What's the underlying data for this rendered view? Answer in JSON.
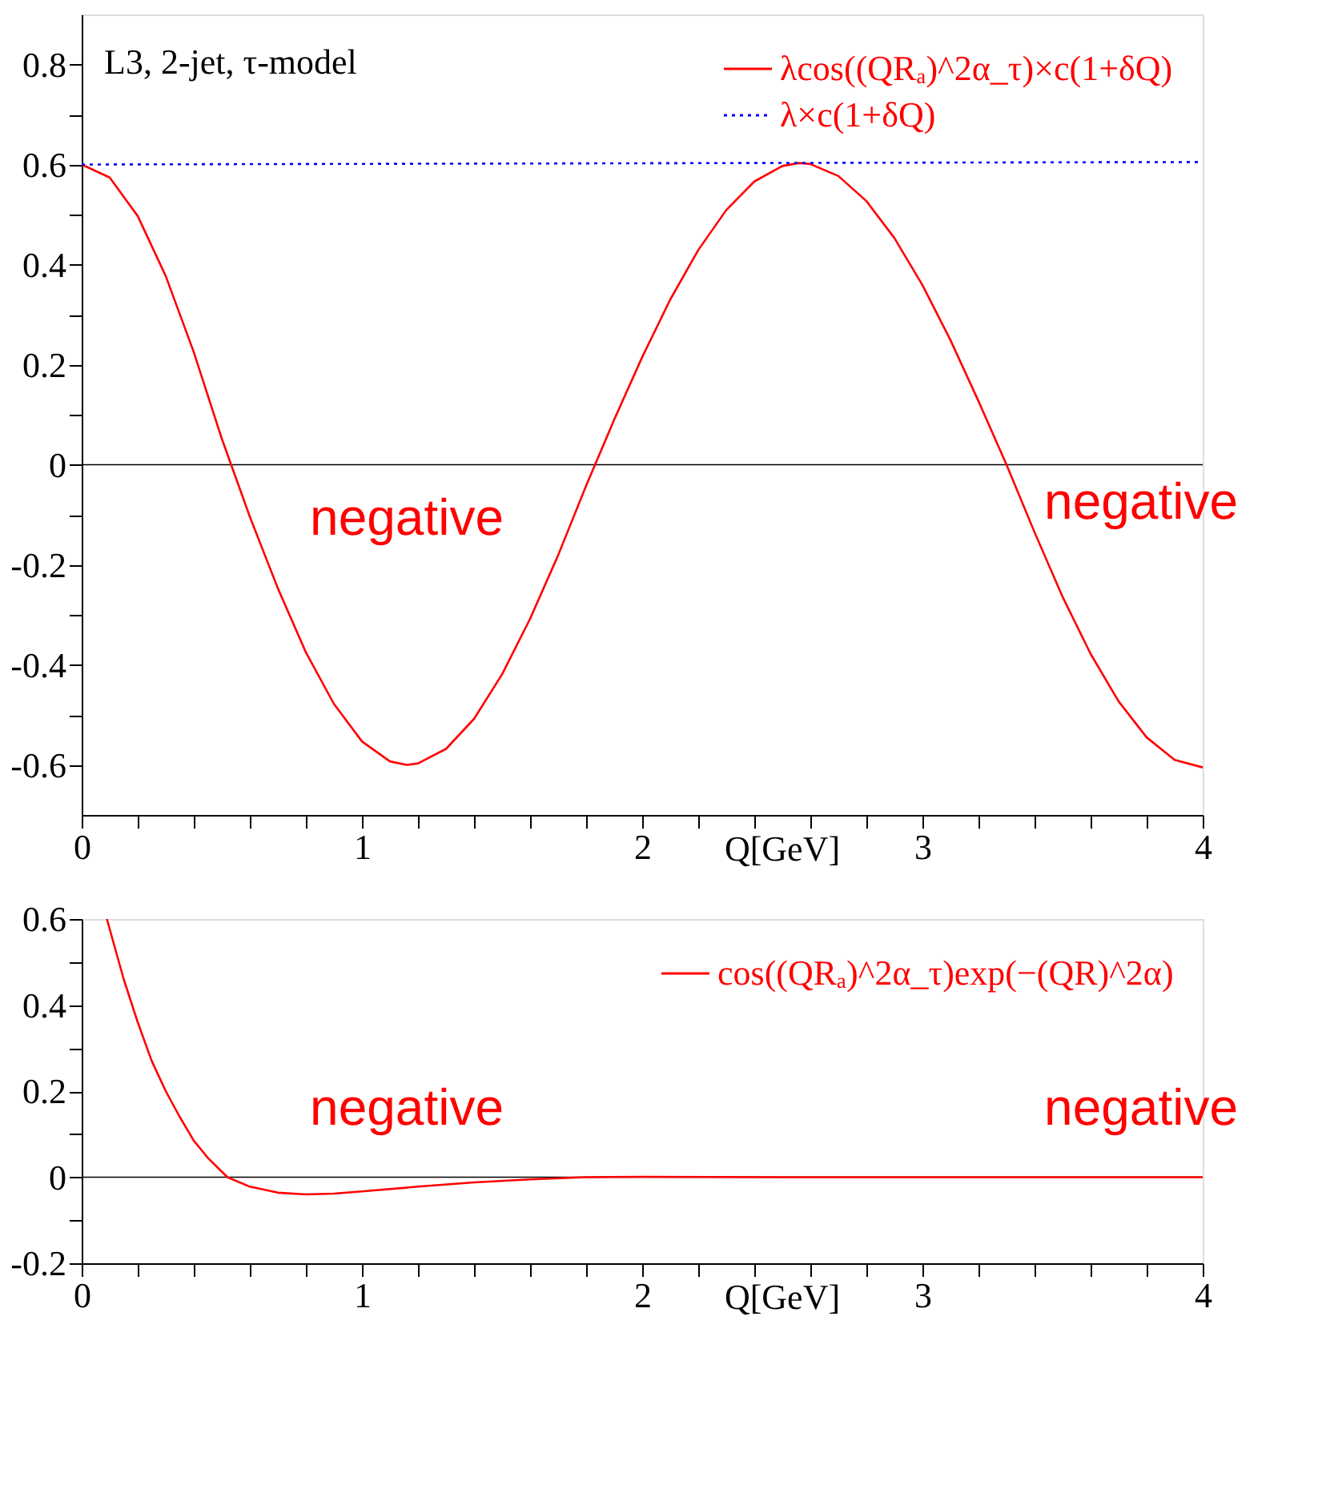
{
  "chart_data": [
    {
      "type": "line",
      "xlabel": "Q[GeV]",
      "xlim": [
        0,
        4
      ],
      "ylim": [
        -0.7,
        0.9
      ],
      "xticks": [
        0,
        {
          "value": 0.2,
          "label": null
        },
        {
          "value": 0.4,
          "label": null
        },
        {
          "value": 0.6,
          "label": null
        },
        {
          "value": 0.8,
          "label": null
        },
        1,
        {
          "value": 1.2,
          "label": null
        },
        {
          "value": 1.4,
          "label": null
        },
        {
          "value": 1.6,
          "label": null
        },
        {
          "value": 1.8,
          "label": null
        },
        2,
        {
          "value": 2.2,
          "label": null
        },
        {
          "value": 2.4,
          "label": null
        },
        {
          "value": 2.6,
          "label": null
        },
        {
          "value": 2.8,
          "label": null
        },
        3,
        {
          "value": 3.2,
          "label": null
        },
        {
          "value": 3.4,
          "label": null
        },
        {
          "value": 3.6,
          "label": null
        },
        {
          "value": 3.8,
          "label": null
        },
        4
      ],
      "yticks": [
        -0.6,
        {
          "value": -0.5,
          "label": null
        },
        -0.4,
        {
          "value": -0.3,
          "label": null
        },
        -0.2,
        {
          "value": -0.1,
          "label": null
        },
        0,
        {
          "value": 0.1,
          "label": null
        },
        0.2,
        {
          "value": 0.3,
          "label": null
        },
        0.4,
        {
          "value": 0.5,
          "label": null
        },
        0.6,
        {
          "value": 0.7,
          "label": null
        },
        0.8
      ],
      "grid": false,
      "legend": "top right",
      "marker": "none",
      "series": [
        {
          "name": "λcos((QRₐ)^2α_τ)×c(1+δQ)",
          "color": "#ff0000",
          "line_style": "solid",
          "x": [
            0,
            0.1,
            0.2,
            0.3,
            0.4,
            0.5,
            0.6,
            0.7,
            0.8,
            0.9,
            1.0,
            1.1,
            1.16,
            1.2,
            1.3,
            1.4,
            1.5,
            1.6,
            1.7,
            1.8,
            1.9,
            2.0,
            2.1,
            2.2,
            2.3,
            2.4,
            2.5,
            2.56,
            2.6,
            2.7,
            2.8,
            2.9,
            3.0,
            3.1,
            3.2,
            3.3,
            3.4,
            3.5,
            3.6,
            3.7,
            3.8,
            3.9,
            4.0
          ],
          "values": [
            0.6,
            0.574,
            0.497,
            0.377,
            0.225,
            0.052,
            -0.104,
            -0.247,
            -0.375,
            -0.478,
            -0.553,
            -0.593,
            -0.6,
            -0.597,
            -0.568,
            -0.508,
            -0.419,
            -0.308,
            -0.181,
            -0.042,
            0.09,
            0.215,
            0.33,
            0.429,
            0.509,
            0.566,
            0.597,
            0.603,
            0.601,
            0.577,
            0.527,
            0.453,
            0.359,
            0.249,
            0.127,
            0.0,
            -0.135,
            -0.264,
            -0.378,
            -0.473,
            -0.545,
            -0.59,
            -0.605
          ]
        },
        {
          "name": "λ×c(1+δQ)",
          "color": "#0000ff",
          "line_style": "dotted",
          "x": [
            0,
            4
          ],
          "values": [
            0.6,
            0.605
          ]
        }
      ],
      "ref_lines": [
        {
          "axis": "y",
          "value": 0,
          "color": "#000000"
        }
      ],
      "annotations": [
        "L3, 2-jet, τ-model",
        "negative",
        "negative"
      ]
    },
    {
      "type": "line",
      "xlabel": "Q[GeV]",
      "xlim": [
        0,
        4
      ],
      "ylim": [
        -0.2,
        0.6
      ],
      "xticks": [
        0,
        {
          "value": 0.2,
          "label": null
        },
        {
          "value": 0.4,
          "label": null
        },
        {
          "value": 0.6,
          "label": null
        },
        {
          "value": 0.8,
          "label": null
        },
        1,
        {
          "value": 1.2,
          "label": null
        },
        {
          "value": 1.4,
          "label": null
        },
        {
          "value": 1.6,
          "label": null
        },
        {
          "value": 1.8,
          "label": null
        },
        2,
        {
          "value": 2.2,
          "label": null
        },
        {
          "value": 2.4,
          "label": null
        },
        {
          "value": 2.6,
          "label": null
        },
        {
          "value": 2.8,
          "label": null
        },
        3,
        {
          "value": 3.2,
          "label": null
        },
        {
          "value": 3.4,
          "label": null
        },
        {
          "value": 3.6,
          "label": null
        },
        {
          "value": 3.8,
          "label": null
        },
        4
      ],
      "yticks": [
        -0.2,
        {
          "value": -0.1,
          "label": null
        },
        0,
        {
          "value": 0.1,
          "label": null
        },
        0.2,
        {
          "value": 0.3,
          "label": null
        },
        0.4,
        {
          "value": 0.5,
          "label": null
        },
        0.6
      ],
      "grid": false,
      "legend": "top right",
      "marker": "none",
      "series": [
        {
          "name": "cos((QRₐ)^2α_τ)exp(−(QR)^2α)",
          "color": "#ff0000",
          "line_style": "solid",
          "x": [
            0.09,
            0.15,
            0.2,
            0.25,
            0.3,
            0.35,
            0.4,
            0.45,
            0.52,
            0.6,
            0.7,
            0.8,
            0.9,
            1.0,
            1.2,
            1.4,
            1.6,
            1.8,
            2.0,
            2.5,
            3.0,
            3.5,
            4.0
          ],
          "values": [
            0.6,
            0.46,
            0.36,
            0.27,
            0.2,
            0.14,
            0.085,
            0.045,
            0.0,
            -0.022,
            -0.036,
            -0.04,
            -0.038,
            -0.033,
            -0.022,
            -0.012,
            -0.005,
            0.0,
            0.001,
            0.0,
            0.0,
            0.0,
            0.0
          ]
        }
      ],
      "ref_lines": [
        {
          "axis": "y",
          "value": 0,
          "color": "#000000"
        }
      ],
      "annotations": [
        "negative",
        "negative"
      ]
    }
  ]
}
